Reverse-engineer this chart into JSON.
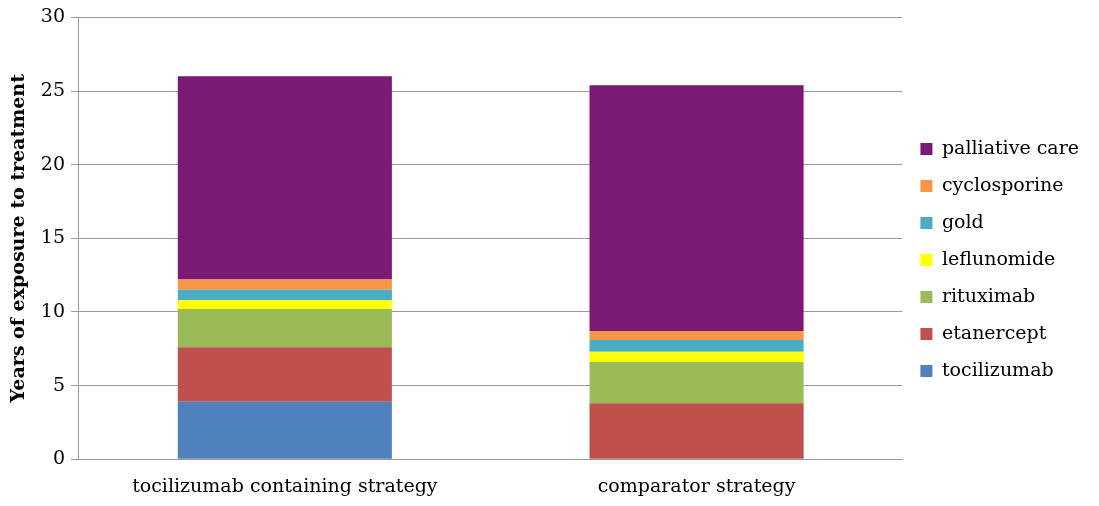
{
  "chart_data": {
    "type": "bar",
    "stacked": true,
    "ylabel": "Years of exposure to treatment",
    "categories": [
      "tocilizumab containing strategy",
      "comparator strategy"
    ],
    "series": [
      {
        "name": "tocilizumab",
        "color": "#4f81bd",
        "values": [
          3.9,
          0
        ]
      },
      {
        "name": "etanercept",
        "color": "#c0504d",
        "values": [
          3.7,
          3.8
        ]
      },
      {
        "name": "rituximab",
        "color": "#9bbb59",
        "values": [
          2.6,
          2.8
        ]
      },
      {
        "name": "leflunomide",
        "color": "#ffff00",
        "values": [
          0.6,
          0.7
        ]
      },
      {
        "name": "gold",
        "color": "#4bacc6",
        "values": [
          0.7,
          0.8
        ]
      },
      {
        "name": "cyclosporine",
        "color": "#f79646",
        "values": [
          0.7,
          0.6
        ]
      },
      {
        "name": "palliative care",
        "color": "#7b1a75",
        "values": [
          13.8,
          16.7
        ]
      }
    ],
    "ylim": [
      0,
      30
    ],
    "yticks": [
      0,
      5,
      10,
      15,
      20,
      25,
      30
    ],
    "grid": "y",
    "legend": "right"
  }
}
